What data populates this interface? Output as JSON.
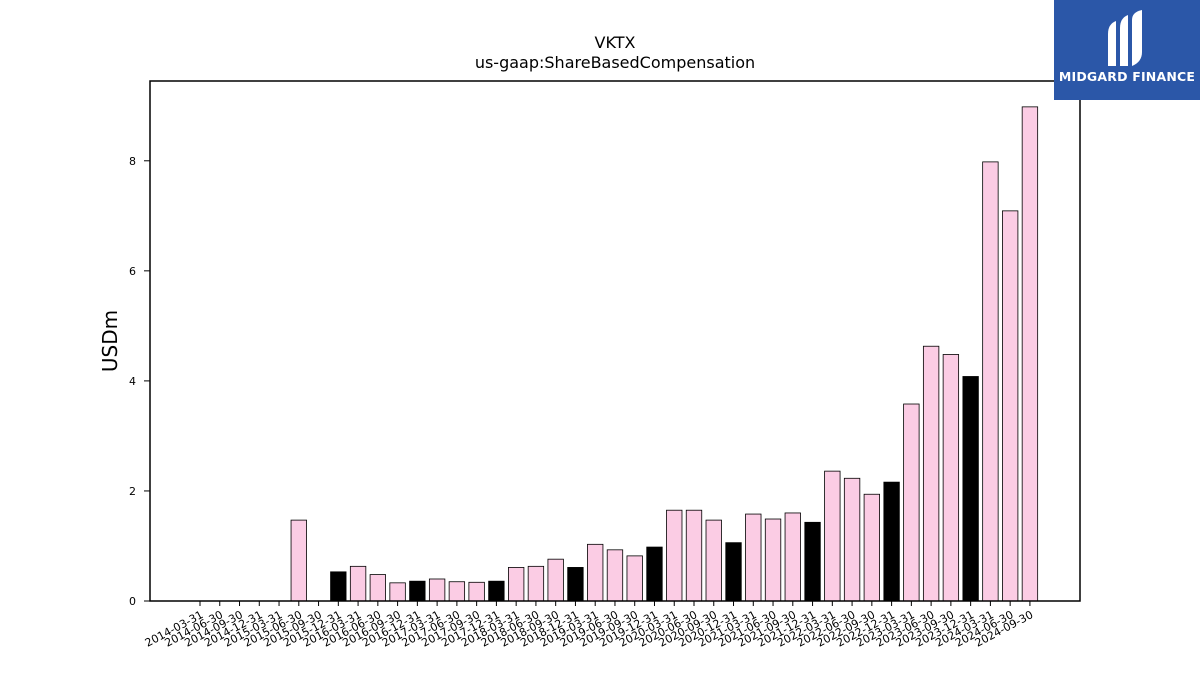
{
  "logo": {
    "text": "MIDGARD FINANCE",
    "icon": "midgard-m-icon",
    "background": "#2b57a8"
  },
  "chart_data": {
    "type": "bar",
    "title": "VKTX",
    "subtitle": "us-gaap:ShareBasedCompensation",
    "xlabel": "",
    "ylabel": "USDm",
    "ylim": [
      0,
      9.45
    ],
    "yticks": [
      0,
      2,
      4,
      6,
      8
    ],
    "grid": false,
    "colors": {
      "quarter": "#fbcce4",
      "fiscal_year_end": "#000000",
      "edge": "#000000"
    },
    "categories": [
      "2014-03-31",
      "2014-06-30",
      "2014-09-30",
      "2014-12-31",
      "2015-03-31",
      "2015-06-30",
      "2015-09-30",
      "2015-12-31",
      "2016-03-31",
      "2016-06-30",
      "2016-09-30",
      "2016-12-31",
      "2017-03-31",
      "2017-06-30",
      "2017-09-30",
      "2017-12-31",
      "2018-03-31",
      "2018-06-30",
      "2018-09-30",
      "2018-12-31",
      "2019-03-31",
      "2019-06-30",
      "2019-09-30",
      "2019-12-31",
      "2020-03-31",
      "2020-06-30",
      "2020-09-30",
      "2020-12-31",
      "2021-03-31",
      "2021-06-30",
      "2021-09-30",
      "2021-12-31",
      "2022-03-31",
      "2022-06-30",
      "2022-09-30",
      "2022-12-31",
      "2023-03-31",
      "2023-06-30",
      "2023-09-30",
      "2023-12-31",
      "2024-03-31",
      "2024-06-30",
      "2024-09-30"
    ],
    "values": [
      0,
      0,
      0,
      0,
      0,
      1.47,
      0,
      0.53,
      0.63,
      0.48,
      0.33,
      0.36,
      0.4,
      0.35,
      0.34,
      0.36,
      0.61,
      0.63,
      0.76,
      0.61,
      1.03,
      0.93,
      0.82,
      0.98,
      1.65,
      1.65,
      1.47,
      1.06,
      1.58,
      1.49,
      1.6,
      1.43,
      2.36,
      2.23,
      1.94,
      2.16,
      3.58,
      4.63,
      4.48,
      4.08,
      7.98,
      7.09,
      8.98
    ],
    "highlight": [
      false,
      false,
      false,
      false,
      false,
      false,
      false,
      true,
      false,
      false,
      false,
      true,
      false,
      false,
      false,
      true,
      false,
      false,
      false,
      true,
      false,
      false,
      false,
      true,
      false,
      false,
      false,
      true,
      false,
      false,
      false,
      true,
      false,
      false,
      false,
      true,
      false,
      false,
      false,
      true,
      false,
      false,
      false
    ]
  }
}
